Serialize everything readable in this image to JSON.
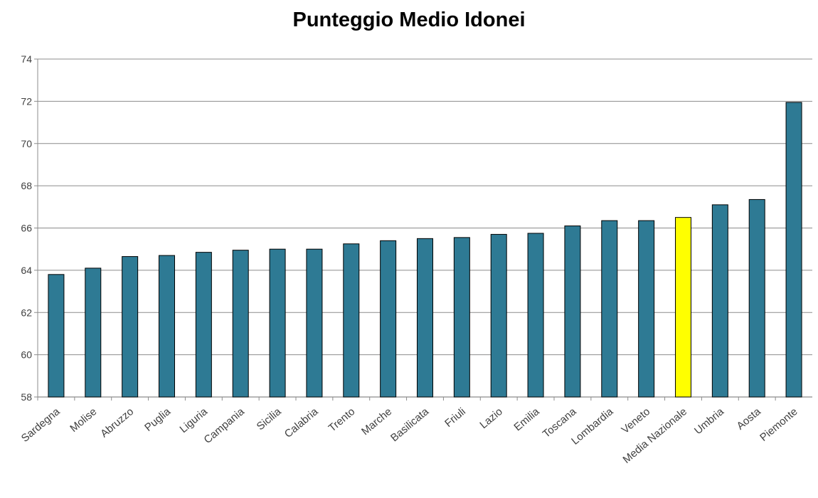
{
  "chart_data": {
    "type": "bar",
    "title": "Punteggio Medio Idonei",
    "xlabel": "",
    "ylabel": "",
    "ylim": [
      58,
      74
    ],
    "yticks": [
      58,
      60,
      62,
      64,
      66,
      68,
      70,
      72,
      74
    ],
    "grid": true,
    "legend": "none",
    "categories": [
      "Sardegna",
      "Molise",
      "Abruzzo",
      "Puglia",
      "Liguria",
      "Campania",
      "Sicilia",
      "Calabria",
      "Trento",
      "Marche",
      "Basilicata",
      "Friuli",
      "Lazio",
      "Emilia",
      "Toscana",
      "Lombardia",
      "Veneto",
      "Media Nazionale",
      "Umbria",
      "Aosta",
      "Piemonte"
    ],
    "values": [
      63.8,
      64.1,
      64.65,
      64.7,
      64.85,
      64.95,
      65.0,
      65.0,
      65.25,
      65.4,
      65.5,
      65.55,
      65.7,
      65.75,
      66.1,
      66.35,
      66.35,
      66.5,
      67.1,
      67.35,
      71.95
    ],
    "colors": {
      "bar": "#2e7a94",
      "highlight": "#ffff00",
      "highlight_category": "Media Nazionale",
      "grid": "#8c8c8c",
      "axis": "#8c8c8c"
    }
  }
}
